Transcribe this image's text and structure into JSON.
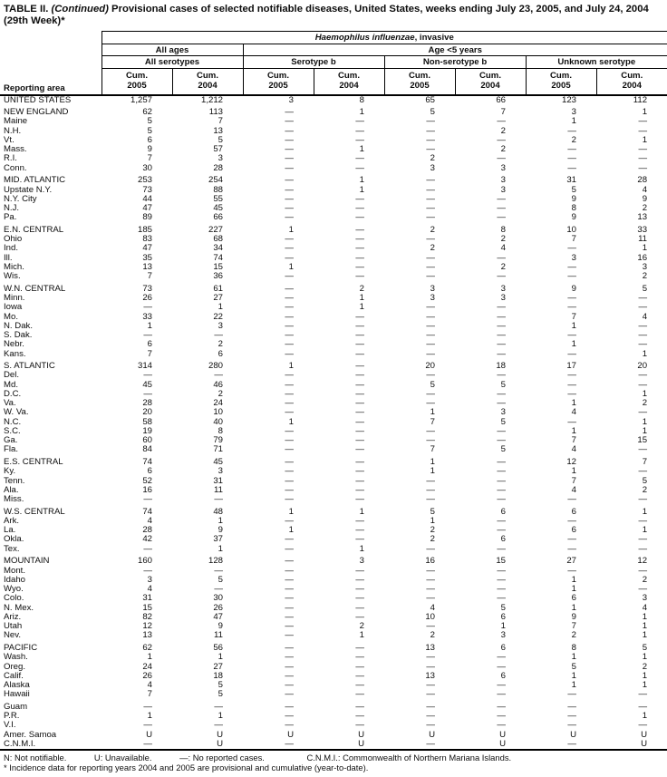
{
  "title": {
    "prefix": "TABLE II.",
    "continued": "(Continued)",
    "rest": "Provisional cases of selected notifiable diseases, United States, weeks ending July 23, 2005, and July 24, 2004",
    "week_line": "(29th Week)*"
  },
  "header": {
    "reporting_area_label": "Reporting area",
    "disease_italic": "Haemophilus influenzae",
    "disease_suffix": ", invasive",
    "group_all_ages": "All ages",
    "group_age_lt5": "Age <5 years",
    "subgroup_all_serotypes": "All serotypes",
    "subgroup_serotype_b": "Serotype b",
    "subgroup_non_serotype_b": "Non-serotype b",
    "subgroup_unknown_serotype": "Unknown serotype",
    "cum_label": "Cum.",
    "years": [
      "2005",
      "2004"
    ]
  },
  "rows": [
    {
      "area": "UNITED STATES",
      "gap": false,
      "values": [
        "1,257",
        "1,212",
        "3",
        "8",
        "65",
        "66",
        "123",
        "112"
      ]
    },
    {
      "area": "NEW ENGLAND",
      "gap": true,
      "values": [
        "62",
        "113",
        "—",
        "1",
        "5",
        "7",
        "3",
        "1"
      ]
    },
    {
      "area": "Maine",
      "gap": false,
      "values": [
        "5",
        "7",
        "—",
        "—",
        "—",
        "—",
        "1",
        "—"
      ]
    },
    {
      "area": "N.H.",
      "gap": false,
      "values": [
        "5",
        "13",
        "—",
        "—",
        "—",
        "2",
        "—",
        "—"
      ]
    },
    {
      "area": "Vt.",
      "gap": false,
      "values": [
        "6",
        "5",
        "—",
        "—",
        "—",
        "—",
        "2",
        "1"
      ]
    },
    {
      "area": "Mass.",
      "gap": false,
      "values": [
        "9",
        "57",
        "—",
        "1",
        "—",
        "2",
        "—",
        "—"
      ]
    },
    {
      "area": "R.I.",
      "gap": false,
      "values": [
        "7",
        "3",
        "—",
        "—",
        "2",
        "—",
        "—",
        "—"
      ]
    },
    {
      "area": "Conn.",
      "gap": false,
      "values": [
        "30",
        "28",
        "—",
        "—",
        "3",
        "3",
        "—",
        "—"
      ]
    },
    {
      "area": "MID. ATLANTIC",
      "gap": true,
      "values": [
        "253",
        "254",
        "—",
        "1",
        "—",
        "3",
        "31",
        "28"
      ]
    },
    {
      "area": "Upstate N.Y.",
      "gap": false,
      "values": [
        "73",
        "88",
        "—",
        "1",
        "—",
        "3",
        "5",
        "4"
      ]
    },
    {
      "area": "N.Y. City",
      "gap": false,
      "values": [
        "44",
        "55",
        "—",
        "—",
        "—",
        "—",
        "9",
        "9"
      ]
    },
    {
      "area": "N.J.",
      "gap": false,
      "values": [
        "47",
        "45",
        "—",
        "—",
        "—",
        "—",
        "8",
        "2"
      ]
    },
    {
      "area": "Pa.",
      "gap": false,
      "values": [
        "89",
        "66",
        "—",
        "—",
        "—",
        "—",
        "9",
        "13"
      ]
    },
    {
      "area": "E.N. CENTRAL",
      "gap": true,
      "values": [
        "185",
        "227",
        "1",
        "—",
        "2",
        "8",
        "10",
        "33"
      ]
    },
    {
      "area": "Ohio",
      "gap": false,
      "values": [
        "83",
        "68",
        "—",
        "—",
        "—",
        "2",
        "7",
        "11"
      ]
    },
    {
      "area": "Ind.",
      "gap": false,
      "values": [
        "47",
        "34",
        "—",
        "—",
        "2",
        "4",
        "—",
        "1"
      ]
    },
    {
      "area": "Ill.",
      "gap": false,
      "values": [
        "35",
        "74",
        "—",
        "—",
        "—",
        "—",
        "3",
        "16"
      ]
    },
    {
      "area": "Mich.",
      "gap": false,
      "values": [
        "13",
        "15",
        "1",
        "—",
        "—",
        "2",
        "—",
        "3"
      ]
    },
    {
      "area": "Wis.",
      "gap": false,
      "values": [
        "7",
        "36",
        "—",
        "—",
        "—",
        "—",
        "—",
        "2"
      ]
    },
    {
      "area": "W.N. CENTRAL",
      "gap": true,
      "values": [
        "73",
        "61",
        "—",
        "2",
        "3",
        "3",
        "9",
        "5"
      ]
    },
    {
      "area": "Minn.",
      "gap": false,
      "values": [
        "26",
        "27",
        "—",
        "1",
        "3",
        "3",
        "—",
        "—"
      ]
    },
    {
      "area": "Iowa",
      "gap": false,
      "values": [
        "—",
        "1",
        "—",
        "1",
        "—",
        "—",
        "—",
        "—"
      ]
    },
    {
      "area": "Mo.",
      "gap": false,
      "values": [
        "33",
        "22",
        "—",
        "—",
        "—",
        "—",
        "7",
        "4"
      ]
    },
    {
      "area": "N. Dak.",
      "gap": false,
      "values": [
        "1",
        "3",
        "—",
        "—",
        "—",
        "—",
        "1",
        "—"
      ]
    },
    {
      "area": "S. Dak.",
      "gap": false,
      "values": [
        "—",
        "—",
        "—",
        "—",
        "—",
        "—",
        "—",
        "—"
      ]
    },
    {
      "area": "Nebr.",
      "gap": false,
      "values": [
        "6",
        "2",
        "—",
        "—",
        "—",
        "—",
        "1",
        "—"
      ]
    },
    {
      "area": "Kans.",
      "gap": false,
      "values": [
        "7",
        "6",
        "—",
        "—",
        "—",
        "—",
        "—",
        "1"
      ]
    },
    {
      "area": "S. ATLANTIC",
      "gap": true,
      "values": [
        "314",
        "280",
        "1",
        "—",
        "20",
        "18",
        "17",
        "20"
      ]
    },
    {
      "area": "Del.",
      "gap": false,
      "values": [
        "—",
        "—",
        "—",
        "—",
        "—",
        "—",
        "—",
        "—"
      ]
    },
    {
      "area": "Md.",
      "gap": false,
      "values": [
        "45",
        "46",
        "—",
        "—",
        "5",
        "5",
        "—",
        "—"
      ]
    },
    {
      "area": "D.C.",
      "gap": false,
      "values": [
        "—",
        "2",
        "—",
        "—",
        "—",
        "—",
        "—",
        "1"
      ]
    },
    {
      "area": "Va.",
      "gap": false,
      "values": [
        "28",
        "24",
        "—",
        "—",
        "—",
        "—",
        "1",
        "2"
      ]
    },
    {
      "area": "W. Va.",
      "gap": false,
      "values": [
        "20",
        "10",
        "—",
        "—",
        "1",
        "3",
        "4",
        "—"
      ]
    },
    {
      "area": "N.C.",
      "gap": false,
      "values": [
        "58",
        "40",
        "1",
        "—",
        "7",
        "5",
        "—",
        "1"
      ]
    },
    {
      "area": "S.C.",
      "gap": false,
      "values": [
        "19",
        "8",
        "—",
        "—",
        "—",
        "—",
        "1",
        "1"
      ]
    },
    {
      "area": "Ga.",
      "gap": false,
      "values": [
        "60",
        "79",
        "—",
        "—",
        "—",
        "—",
        "7",
        "15"
      ]
    },
    {
      "area": "Fla.",
      "gap": false,
      "values": [
        "84",
        "71",
        "—",
        "—",
        "7",
        "5",
        "4",
        "—"
      ]
    },
    {
      "area": "E.S. CENTRAL",
      "gap": true,
      "values": [
        "74",
        "45",
        "—",
        "—",
        "1",
        "—",
        "12",
        "7"
      ]
    },
    {
      "area": "Ky.",
      "gap": false,
      "values": [
        "6",
        "3",
        "—",
        "—",
        "1",
        "—",
        "1",
        "—"
      ]
    },
    {
      "area": "Tenn.",
      "gap": false,
      "values": [
        "52",
        "31",
        "—",
        "—",
        "—",
        "—",
        "7",
        "5"
      ]
    },
    {
      "area": "Ala.",
      "gap": false,
      "values": [
        "16",
        "11",
        "—",
        "—",
        "—",
        "—",
        "4",
        "2"
      ]
    },
    {
      "area": "Miss.",
      "gap": false,
      "values": [
        "—",
        "—",
        "—",
        "—",
        "—",
        "—",
        "—",
        "—"
      ]
    },
    {
      "area": "W.S. CENTRAL",
      "gap": true,
      "values": [
        "74",
        "48",
        "1",
        "1",
        "5",
        "6",
        "6",
        "1"
      ]
    },
    {
      "area": "Ark.",
      "gap": false,
      "values": [
        "4",
        "1",
        "—",
        "—",
        "1",
        "—",
        "—",
        "—"
      ]
    },
    {
      "area": "La.",
      "gap": false,
      "values": [
        "28",
        "9",
        "1",
        "—",
        "2",
        "—",
        "6",
        "1"
      ]
    },
    {
      "area": "Okla.",
      "gap": false,
      "values": [
        "42",
        "37",
        "—",
        "—",
        "2",
        "6",
        "—",
        "—"
      ]
    },
    {
      "area": "Tex.",
      "gap": false,
      "values": [
        "—",
        "1",
        "—",
        "1",
        "—",
        "—",
        "—",
        "—"
      ]
    },
    {
      "area": "MOUNTAIN",
      "gap": true,
      "values": [
        "160",
        "128",
        "—",
        "3",
        "16",
        "15",
        "27",
        "12"
      ]
    },
    {
      "area": "Mont.",
      "gap": false,
      "values": [
        "—",
        "—",
        "—",
        "—",
        "—",
        "—",
        "—",
        "—"
      ]
    },
    {
      "area": "Idaho",
      "gap": false,
      "values": [
        "3",
        "5",
        "—",
        "—",
        "—",
        "—",
        "1",
        "2"
      ]
    },
    {
      "area": "Wyo.",
      "gap": false,
      "values": [
        "4",
        "—",
        "—",
        "—",
        "—",
        "—",
        "1",
        "—"
      ]
    },
    {
      "area": "Colo.",
      "gap": false,
      "values": [
        "31",
        "30",
        "—",
        "—",
        "—",
        "—",
        "6",
        "3"
      ]
    },
    {
      "area": "N. Mex.",
      "gap": false,
      "values": [
        "15",
        "26",
        "—",
        "—",
        "4",
        "5",
        "1",
        "4"
      ]
    },
    {
      "area": "Ariz.",
      "gap": false,
      "values": [
        "82",
        "47",
        "—",
        "—",
        "10",
        "6",
        "9",
        "1"
      ]
    },
    {
      "area": "Utah",
      "gap": false,
      "values": [
        "12",
        "9",
        "—",
        "2",
        "—",
        "1",
        "7",
        "1"
      ]
    },
    {
      "area": "Nev.",
      "gap": false,
      "values": [
        "13",
        "11",
        "—",
        "1",
        "2",
        "3",
        "2",
        "1"
      ]
    },
    {
      "area": "PACIFIC",
      "gap": true,
      "values": [
        "62",
        "56",
        "—",
        "—",
        "13",
        "6",
        "8",
        "5"
      ]
    },
    {
      "area": "Wash.",
      "gap": false,
      "values": [
        "1",
        "1",
        "—",
        "—",
        "—",
        "—",
        "1",
        "1"
      ]
    },
    {
      "area": "Oreg.",
      "gap": false,
      "values": [
        "24",
        "27",
        "—",
        "—",
        "—",
        "—",
        "5",
        "2"
      ]
    },
    {
      "area": "Calif.",
      "gap": false,
      "values": [
        "26",
        "18",
        "—",
        "—",
        "13",
        "6",
        "1",
        "1"
      ]
    },
    {
      "area": "Alaska",
      "gap": false,
      "values": [
        "4",
        "5",
        "—",
        "—",
        "—",
        "—",
        "1",
        "1"
      ]
    },
    {
      "area": "Hawaii",
      "gap": false,
      "values": [
        "7",
        "5",
        "—",
        "—",
        "—",
        "—",
        "—",
        "—"
      ]
    },
    {
      "area": "Guam",
      "gap": true,
      "values": [
        "—",
        "—",
        "—",
        "—",
        "—",
        "—",
        "—",
        "—"
      ]
    },
    {
      "area": "P.R.",
      "gap": false,
      "values": [
        "1",
        "1",
        "—",
        "—",
        "—",
        "—",
        "—",
        "1"
      ]
    },
    {
      "area": "V.I.",
      "gap": false,
      "values": [
        "—",
        "—",
        "—",
        "—",
        "—",
        "—",
        "—",
        "—"
      ]
    },
    {
      "area": "Amer. Samoa",
      "gap": false,
      "values": [
        "U",
        "U",
        "U",
        "U",
        "U",
        "U",
        "U",
        "U"
      ]
    },
    {
      "area": "C.N.M.I.",
      "gap": false,
      "values": [
        "—",
        "U",
        "—",
        "U",
        "—",
        "U",
        "—",
        "U"
      ]
    }
  ],
  "footnotes": {
    "line1_parts": [
      "N: Not notifiable.",
      "U: Unavailable.",
      "—: No reported cases.",
      "C.N.M.I.: Commonwealth of Northern Mariana Islands."
    ],
    "line2": "* Incidence data for reporting years 2004 and 2005 are provisional and cumulative (year-to-date)."
  }
}
